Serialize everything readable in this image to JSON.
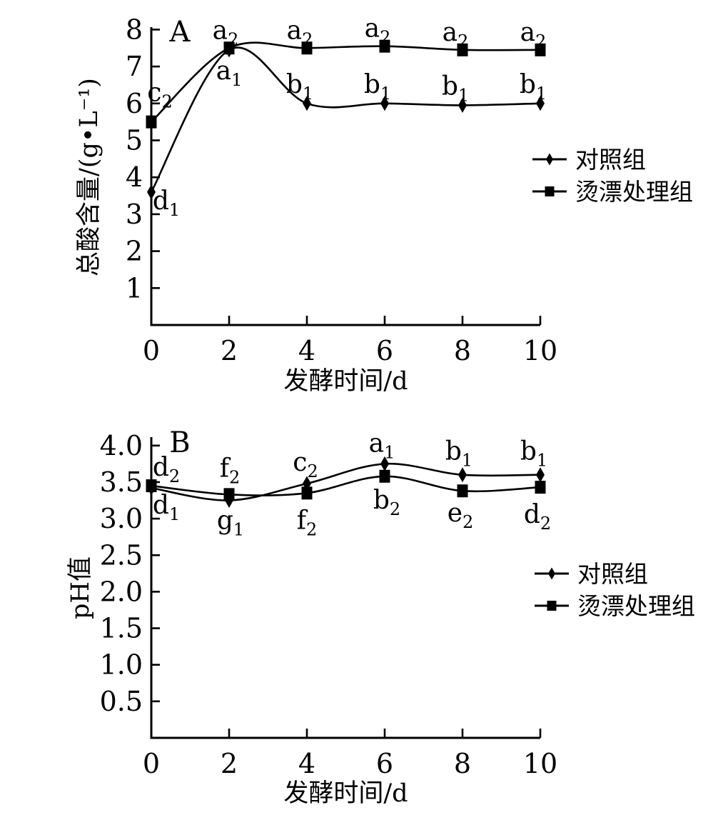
{
  "figure": {
    "background": "#ffffff",
    "ink_color": "#000000",
    "panels": [
      "A",
      "B"
    ]
  },
  "chart_data": [
    {
      "id": "A",
      "type": "line",
      "panel_label": "A",
      "xlabel": "发酵时间/d",
      "ylabel": "总酸含量/(g•L⁻¹)",
      "x": [
        0,
        2,
        4,
        6,
        8,
        10
      ],
      "xtick_labels": [
        "0",
        "2",
        "4",
        "6",
        "8",
        "10"
      ],
      "ytick_labels": [
        "1",
        "2",
        "3",
        "4",
        "5",
        "6",
        "7",
        "8"
      ],
      "xlim": [
        0,
        10
      ],
      "ylim": [
        0,
        8
      ],
      "grid": false,
      "legend_position": "right",
      "legend": [
        "对照组",
        "烫漂处理组"
      ],
      "series": [
        {
          "key": "control",
          "name": "对照组",
          "marker": "diamond",
          "values": [
            3.6,
            7.45,
            6.0,
            6.0,
            5.95,
            6.0
          ],
          "point_labels": [
            {
              "text": "d1",
              "dx": 21,
              "dy": 24
            },
            {
              "text": "a1",
              "dx": 0,
              "dy": 41
            },
            {
              "text": "b1",
              "dx": -10,
              "dy": -15
            },
            {
              "text": "b1",
              "dx": -10,
              "dy": -15
            },
            {
              "text": "b1",
              "dx": -10,
              "dy": -15
            },
            {
              "text": "b1",
              "dx": -10,
              "dy": -15
            }
          ]
        },
        {
          "key": "blanched",
          "name": "烫漂处理组",
          "marker": "square",
          "values": [
            5.5,
            7.5,
            7.5,
            7.55,
            7.45,
            7.45
          ],
          "point_labels": [
            {
              "text": "c2",
              "dx": 12,
              "dy": -29
            },
            {
              "text": "a2",
              "dx": -5,
              "dy": -13
            },
            {
              "text": "a2",
              "dx": -10,
              "dy": -13
            },
            {
              "text": "a2",
              "dx": -10,
              "dy": -13
            },
            {
              "text": "a2",
              "dx": -10,
              "dy": -13
            },
            {
              "text": "a2",
              "dx": -10,
              "dy": -13
            }
          ]
        }
      ]
    },
    {
      "id": "B",
      "type": "line",
      "panel_label": "B",
      "xlabel": "发酵时间/d",
      "ylabel": "pH值",
      "x": [
        0,
        2,
        4,
        6,
        8,
        10
      ],
      "xtick_labels": [
        "0",
        "2",
        "4",
        "6",
        "8",
        "10"
      ],
      "ytick_labels": [
        "0.5",
        "1.0",
        "1.5",
        "2.0",
        "2.5",
        "3.0",
        "3.5",
        "4.0"
      ],
      "xlim": [
        0,
        10
      ],
      "ylim": [
        0,
        4.0
      ],
      "grid": false,
      "legend_position": "right",
      "legend": [
        "对照组",
        "烫漂处理组"
      ],
      "series": [
        {
          "key": "control",
          "name": "对照组",
          "marker": "diamond",
          "values": [
            3.42,
            3.25,
            3.48,
            3.75,
            3.6,
            3.6
          ],
          "point_labels": [
            {
              "text": "d1",
              "dx": 21,
              "dy": 36
            },
            {
              "text": "g1",
              "dx": 2,
              "dy": 40
            },
            {
              "text": "c2",
              "dx": -2,
              "dy": -18
            },
            {
              "text": "a1",
              "dx": -4,
              "dy": -17
            },
            {
              "text": "b1",
              "dx": -5,
              "dy": -21
            },
            {
              "text": "b1",
              "dx": -9,
              "dy": -21
            }
          ]
        },
        {
          "key": "blanched",
          "name": "烫漂处理组",
          "marker": "square",
          "values": [
            3.45,
            3.33,
            3.35,
            3.58,
            3.38,
            3.43
          ],
          "point_labels": [
            {
              "text": "d2",
              "dx": 21,
              "dy": -14
            },
            {
              "text": "f2",
              "dx": 1,
              "dy": -25
            },
            {
              "text": "f2",
              "dx": 0,
              "dy": 50
            },
            {
              "text": "b2",
              "dx": 3,
              "dy": 45
            },
            {
              "text": "e2",
              "dx": -3,
              "dy": 43
            },
            {
              "text": "d2",
              "dx": -4,
              "dy": 50
            }
          ]
        }
      ]
    }
  ]
}
